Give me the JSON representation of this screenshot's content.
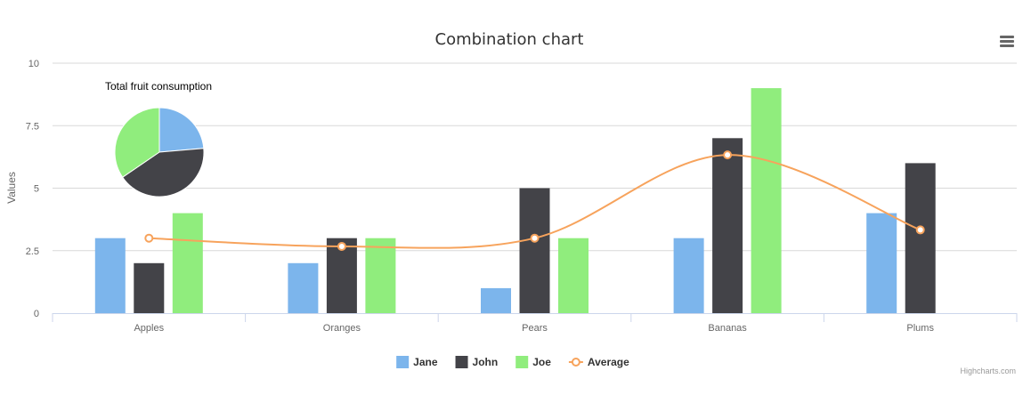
{
  "chart_data": {
    "type": "bar",
    "title": "Combination chart",
    "ylabel": "Values",
    "xlabel": "",
    "ylim": [
      0,
      10
    ],
    "yticks": [
      0,
      2.5,
      5,
      7.5,
      10
    ],
    "ytick_labels": [
      "0",
      "2.5",
      "5",
      "7.5",
      "10"
    ],
    "grid": true,
    "legend_position": "bottom-center",
    "categories": [
      "Apples",
      "Oranges",
      "Pears",
      "Bananas",
      "Plums"
    ],
    "series": [
      {
        "name": "Jane",
        "type": "column",
        "color": "#7cb5ec",
        "values": [
          3,
          2,
          1,
          3,
          4
        ]
      },
      {
        "name": "John",
        "type": "column",
        "color": "#434348",
        "values": [
          2,
          3,
          5,
          7,
          6
        ]
      },
      {
        "name": "Joe",
        "type": "column",
        "color": "#90ed7d",
        "values": [
          4,
          3,
          3,
          9,
          0
        ]
      },
      {
        "name": "Average",
        "type": "spline",
        "color": "#f7a35c",
        "values": [
          3,
          2.67,
          3,
          6.33,
          3.33
        ]
      }
    ],
    "pie": {
      "title": "Total fruit consumption",
      "slices": [
        {
          "name": "Jane",
          "value": 13,
          "color": "#7cb5ec"
        },
        {
          "name": "John",
          "value": 23,
          "color": "#434348"
        },
        {
          "name": "Joe",
          "value": 19,
          "color": "#90ed7d"
        }
      ]
    }
  },
  "menu_icon": "hamburger-menu-icon",
  "credits": "Highcharts.com"
}
